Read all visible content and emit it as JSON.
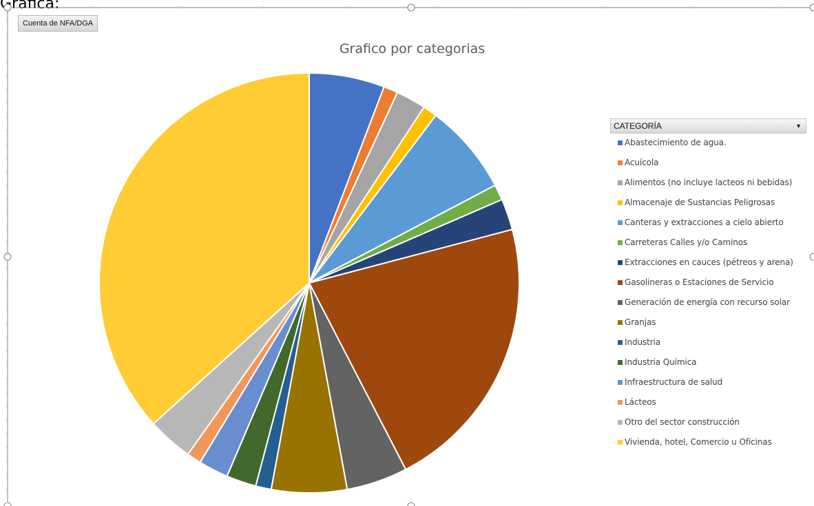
{
  "sheet": {
    "label": "Grafica:"
  },
  "pivot": {
    "field_button": "Cuenta de NFA/DGA",
    "legend_field": "CATEGORÍA"
  },
  "colors": {
    "title": "#595959",
    "legend_text": "#404040"
  },
  "chart_data": {
    "type": "pie",
    "title": "Grafico por categorias",
    "legend_position": "right",
    "start_angle_deg": 0,
    "direction": "clockwise",
    "categories": [
      "Abastecimiento de agua.",
      "Acuícola",
      "Alimentos (no incluye lacteos ni bebidas)",
      "Almacenaje de Sustancias Peligrosas",
      "Canteras y extracciones a cielo abierto",
      "Carreteras Calles y/o Caminos",
      "Extracciones en cauces (pétreos y arena)",
      "Gasolineras o Estaciones de Servicio",
      "Generación de energía con recurso solar",
      "Granjas",
      "Industria",
      "Industria Química",
      "Infraestructura de salud",
      "Lácteos",
      "Otro del sector construcción",
      "Vivienda, hotel, Comercio u Oficinas"
    ],
    "values": [
      5.8,
      1.1,
      2.3,
      1.1,
      7.0,
      1.2,
      2.4,
      21.5,
      4.7,
      5.8,
      1.2,
      2.3,
      2.3,
      1.1,
      3.5,
      36.7
    ],
    "colors": [
      "#4472C4",
      "#ED7D31",
      "#A5A5A5",
      "#FFC000",
      "#5B9BD5",
      "#70AD47",
      "#264478",
      "#9E480E",
      "#636363",
      "#997300",
      "#255E91",
      "#43682B",
      "#698ED0",
      "#F1975A",
      "#B7B7B7",
      "#FFCD33"
    ]
  }
}
